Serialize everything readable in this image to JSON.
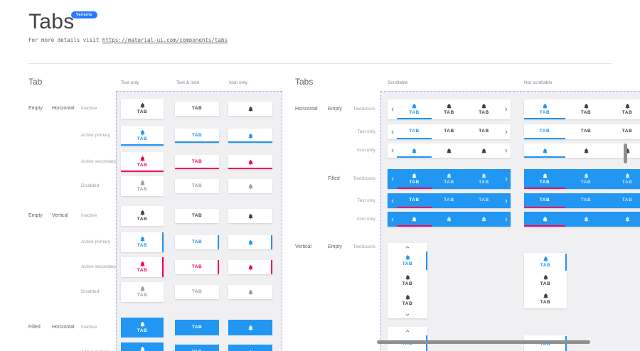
{
  "header": {
    "title": "Tabs",
    "badge": "Variants",
    "subtitle_prefix": "For more details visit ",
    "subtitle_link": "https://material-ui.com/components/tabs"
  },
  "tab_label": "TAB",
  "colors": {
    "primary": "#2196F3",
    "secondary": "#F50057",
    "inactive": "#424242",
    "disabled": "#9E9E9E",
    "filled_background": "#2196F3",
    "badge_background": "#2979FF"
  },
  "icons": {
    "tab_icon": "bell-icon",
    "scroll_left": "chevron-left-icon",
    "scroll_right": "chevron-right-icon",
    "scroll_up": "chevron-up-icon",
    "scroll_down": "chevron-down-icon"
  },
  "left": {
    "heading": "Tab",
    "columns": [
      "Text only",
      "Text & Icon",
      "Icon only"
    ],
    "rows": [
      {
        "style": "Empty",
        "orientation": "Horizontal",
        "state": "Inactive",
        "variant": "inactive",
        "indicator": "none",
        "filled": false
      },
      {
        "state": "Active primary",
        "variant": "primary",
        "indicator": "bottom",
        "filled": false
      },
      {
        "state": "Active secondary",
        "variant": "secondary",
        "indicator": "bottom",
        "filled": false
      },
      {
        "state": "Disabled",
        "variant": "disabled",
        "indicator": "none",
        "filled": false
      },
      {
        "style": "Empty",
        "orientation": "Vertical",
        "state": "Inactive",
        "variant": "inactive",
        "indicator": "none",
        "filled": false
      },
      {
        "state": "Active primary",
        "variant": "primary",
        "indicator": "right",
        "filled": false
      },
      {
        "state": "Active secondary",
        "variant": "secondary",
        "indicator": "right",
        "filled": false
      },
      {
        "state": "Disabled",
        "variant": "disabled",
        "indicator": "none",
        "filled": false
      },
      {
        "style": "Filled",
        "orientation": "Horizontal",
        "state": "Inactive",
        "variant": "filled-inactive",
        "indicator": "none",
        "filled": true
      },
      {
        "state": "Active primary",
        "variant": "filled-primary",
        "indicator": "none",
        "filled": true
      }
    ]
  },
  "right": {
    "heading": "Tabs",
    "columns": [
      "Scrollable",
      "Not scrollable"
    ],
    "rows": [
      {
        "orientation": "Horizontal",
        "style": "Empty",
        "label": "Text&icons",
        "content": "both",
        "filled": false
      },
      {
        "label": "Text only",
        "content": "text",
        "filled": false
      },
      {
        "label": "Icon only",
        "content": "icon",
        "filled": false
      },
      {
        "style": "Filled",
        "label": "Text&icons",
        "content": "both",
        "filled": true
      },
      {
        "label": "Text only",
        "content": "text",
        "filled": true
      },
      {
        "label": "Icon only",
        "content": "icon",
        "filled": true
      },
      {
        "orientation": "Vertical",
        "style": "Empty",
        "label": "Text&icons",
        "content": "both",
        "filled": false
      }
    ]
  }
}
